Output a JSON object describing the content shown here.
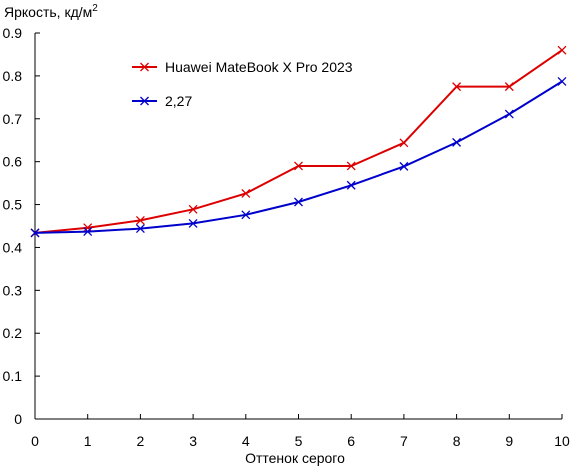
{
  "chart_data": {
    "type": "line",
    "title": "",
    "ylabel_main": "Яркость, кд/м",
    "ylabel_sup": "2",
    "xlabel": "Оттенок серого",
    "xlim": [
      0,
      10
    ],
    "ylim": [
      0,
      0.9
    ],
    "xticks": [
      "0",
      "1",
      "2",
      "3",
      "4",
      "5",
      "6",
      "7",
      "8",
      "9",
      "10"
    ],
    "yticks": [
      "0",
      "0.1",
      "0.2",
      "0.3",
      "0.4",
      "0.5",
      "0.6",
      "0.7",
      "0.8",
      "0.9"
    ],
    "grid": false,
    "legend_position": "top-left",
    "x": [
      0,
      1,
      2,
      3,
      4,
      5,
      6,
      7,
      8,
      9,
      10
    ],
    "series": [
      {
        "name": "Huawei MateBook X Pro 2023",
        "color": "#dd0000",
        "marker": "x",
        "values": [
          0.434,
          0.446,
          0.463,
          0.489,
          0.526,
          0.59,
          0.59,
          0.644,
          0.775,
          0.775,
          0.86
        ]
      },
      {
        "name": "2,27",
        "color": "#0000cc",
        "marker": "x",
        "values": [
          0.434,
          0.437,
          0.444,
          0.456,
          0.476,
          0.506,
          0.545,
          0.589,
          0.645,
          0.711,
          0.787
        ]
      }
    ]
  }
}
